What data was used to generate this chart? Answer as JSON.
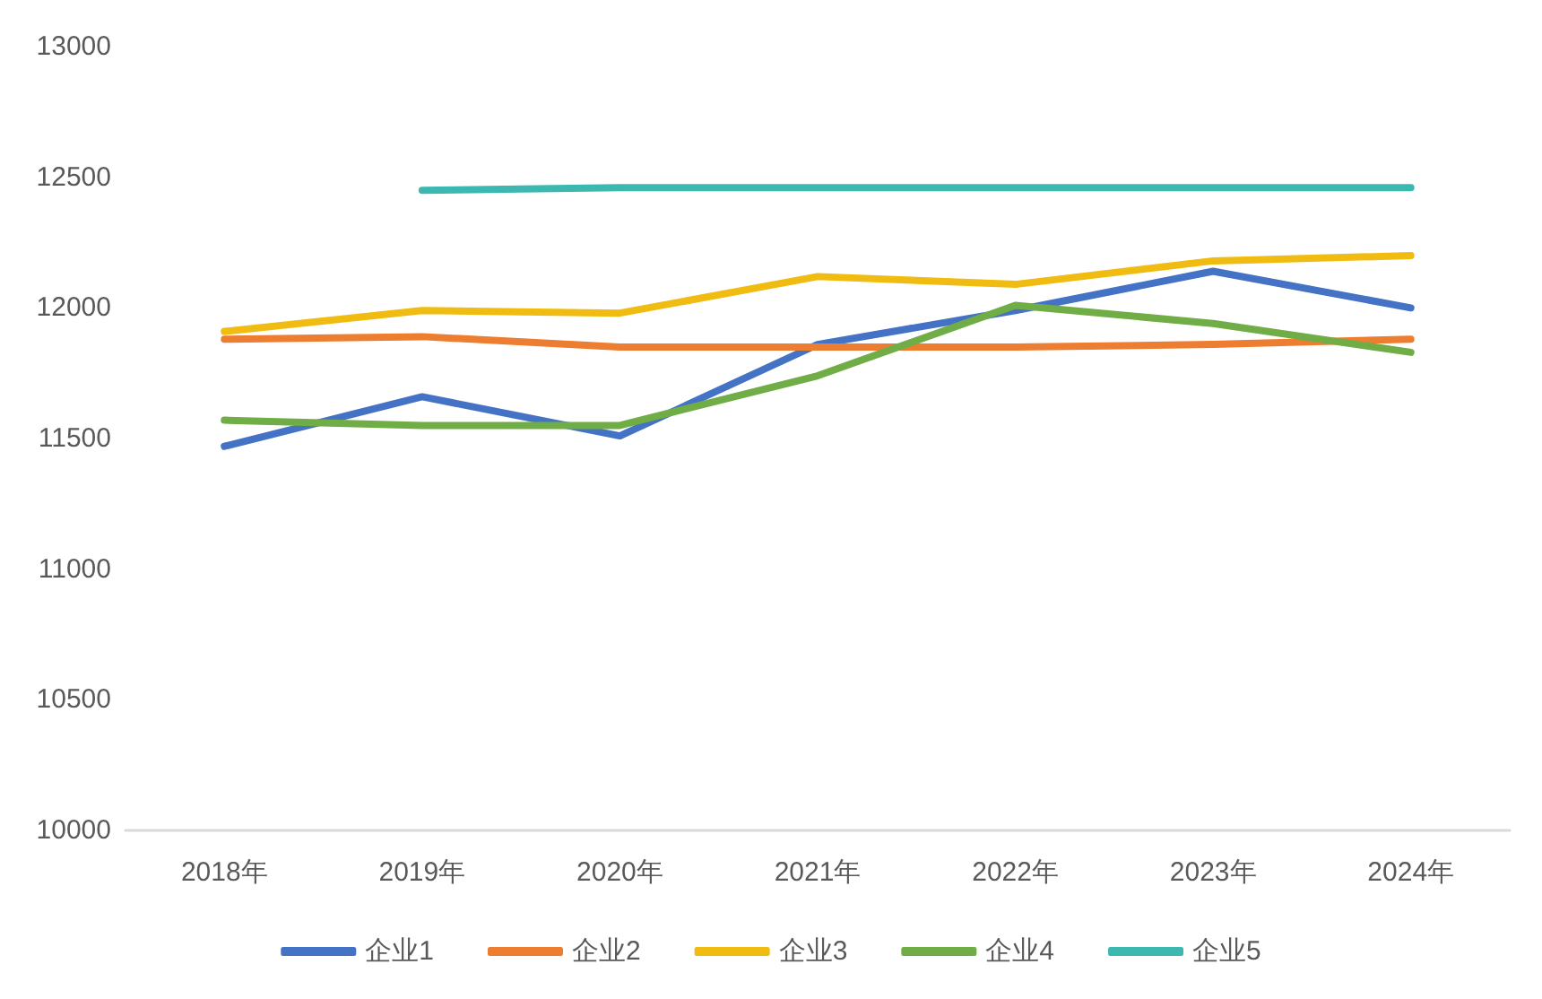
{
  "chart_data": {
    "type": "line",
    "categories": [
      "2018年",
      "2019年",
      "2020年",
      "2021年",
      "2022年",
      "2023年",
      "2024年"
    ],
    "series": [
      {
        "name": "企业1",
        "color": "#4472c4",
        "values": [
          11470,
          11660,
          11510,
          11860,
          11990,
          12140,
          12000
        ]
      },
      {
        "name": "企业2",
        "color": "#ed7d31",
        "values": [
          11880,
          11890,
          11850,
          11850,
          11850,
          11860,
          11880
        ]
      },
      {
        "name": "企业3",
        "color": "#f0bc12",
        "values": [
          11910,
          11990,
          11980,
          12120,
          12090,
          12180,
          12200
        ]
      },
      {
        "name": "企业4",
        "color": "#70ad47",
        "values": [
          11570,
          11550,
          11550,
          11740,
          12010,
          11940,
          11830
        ]
      },
      {
        "name": "企业5",
        "color": "#3cb8b0",
        "values": [
          null,
          12450,
          12460,
          12460,
          12460,
          12460,
          12460
        ]
      }
    ],
    "ylim": [
      10000,
      13000
    ],
    "yticks": [
      10000,
      10500,
      11000,
      11500,
      12000,
      12500,
      13000
    ],
    "legend": "bottom",
    "line_style": "solid"
  }
}
